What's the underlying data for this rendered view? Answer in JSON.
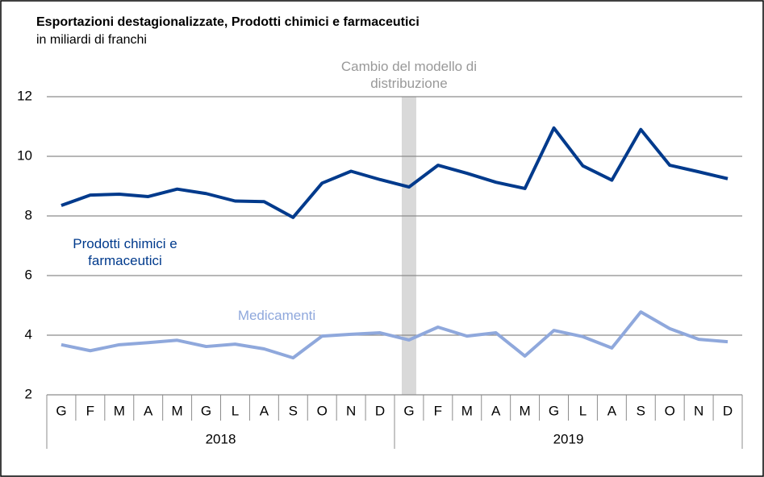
{
  "chart_data": {
    "type": "line",
    "title": "Esportazioni destagionalizzate, Prodotti chimici e farmaceutici",
    "subtitle": "in miliardi di franchi",
    "categories": [
      "G",
      "F",
      "M",
      "A",
      "M",
      "G",
      "L",
      "A",
      "S",
      "O",
      "N",
      "D",
      "G",
      "F",
      "M",
      "A",
      "M",
      "G",
      "L",
      "A",
      "S",
      "O",
      "N",
      "D"
    ],
    "groups": [
      "2018",
      "2019"
    ],
    "series": [
      {
        "name": "Prodotti chimici e farmaceutici",
        "color": "#003a8c",
        "values": [
          8.35,
          8.7,
          8.73,
          8.65,
          8.9,
          8.75,
          8.5,
          8.48,
          7.95,
          9.1,
          9.5,
          9.22,
          8.97,
          9.7,
          9.43,
          9.13,
          8.92,
          10.95,
          9.68,
          9.2,
          10.9,
          9.7,
          9.48,
          9.25
        ]
      },
      {
        "name": "Medicamenti",
        "color": "#8fa8dc",
        "values": [
          3.68,
          3.48,
          3.68,
          3.75,
          3.83,
          3.62,
          3.7,
          3.54,
          3.24,
          3.97,
          4.03,
          4.08,
          3.84,
          4.27,
          3.97,
          4.08,
          3.3,
          4.16,
          3.95,
          3.57,
          4.78,
          4.22,
          3.86,
          3.78
        ]
      }
    ],
    "annotation": {
      "text": "Cambio del modello di distribuzione",
      "category_index": 12,
      "color": "#d9d9d9"
    },
    "ylim": [
      2,
      12
    ],
    "yticks": [
      2,
      4,
      6,
      8,
      10,
      12
    ],
    "grid": true
  }
}
